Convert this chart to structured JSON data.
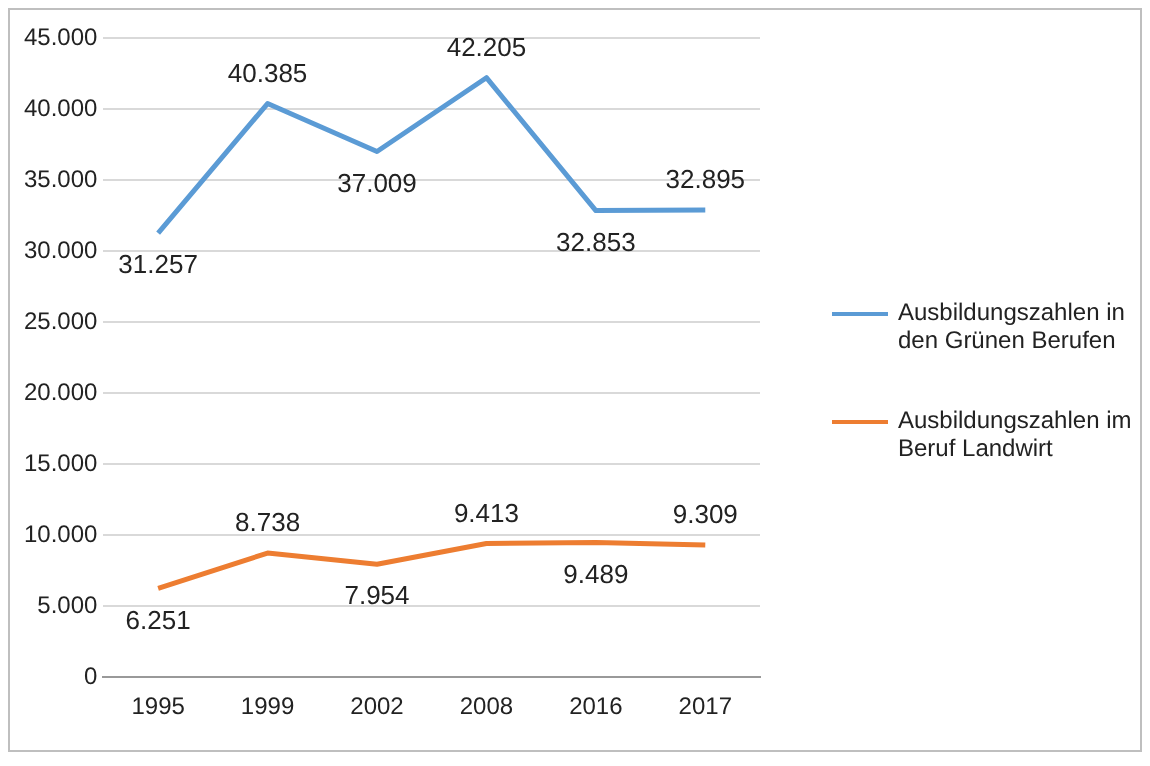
{
  "chart_data": {
    "type": "line",
    "categories": [
      "1995",
      "1999",
      "2002",
      "2008",
      "2016",
      "2017"
    ],
    "series": [
      {
        "name": "Ausbildungszahlen in den Grünen Berufen",
        "color": "#5b9bd5",
        "values": [
          31257,
          40385,
          37009,
          42205,
          32853,
          32895
        ],
        "value_labels": [
          "31.257",
          "40.385",
          "37.009",
          "42.205",
          "32.853",
          "32.895"
        ]
      },
      {
        "name": "Ausbildungszahlen im Beruf Landwirt",
        "color": "#ed7d31",
        "values": [
          6251,
          8738,
          7954,
          9413,
          9489,
          9309
        ],
        "value_labels": [
          "6.251",
          "8.738",
          "7.954",
          "9.413",
          "9.489",
          "9.309"
        ]
      }
    ],
    "ylim": [
      0,
      45000
    ],
    "yticks": [
      {
        "value": 0,
        "label": "0"
      },
      {
        "value": 5000,
        "label": "5.000"
      },
      {
        "value": 10000,
        "label": "10.000"
      },
      {
        "value": 15000,
        "label": "15.000"
      },
      {
        "value": 20000,
        "label": "20.000"
      },
      {
        "value": 25000,
        "label": "25.000"
      },
      {
        "value": 30000,
        "label": "30.000"
      },
      {
        "value": 35000,
        "label": "35.000"
      },
      {
        "value": 40000,
        "label": "40.000"
      },
      {
        "value": 45000,
        "label": "45.000"
      }
    ],
    "grid": "y",
    "legend": "right",
    "marker": "none",
    "line_style": "solid"
  }
}
